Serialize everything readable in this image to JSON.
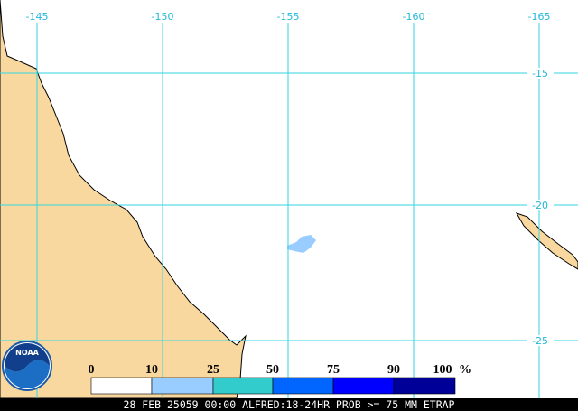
{
  "map": {
    "longitude_labels": [
      "-145",
      "-150",
      "-155",
      "-160",
      "-165"
    ],
    "latitude_labels": [
      "-15",
      "-20",
      "-25"
    ]
  },
  "legend": {
    "labels": [
      "0",
      "10",
      "25",
      "50",
      "75",
      "90",
      "100"
    ],
    "unit": "%"
  },
  "logo": "NOAA",
  "footer": "28 FEB 25059 00:00 ALFRED:18-24HR PROB >= 75 MM ETRAP"
}
